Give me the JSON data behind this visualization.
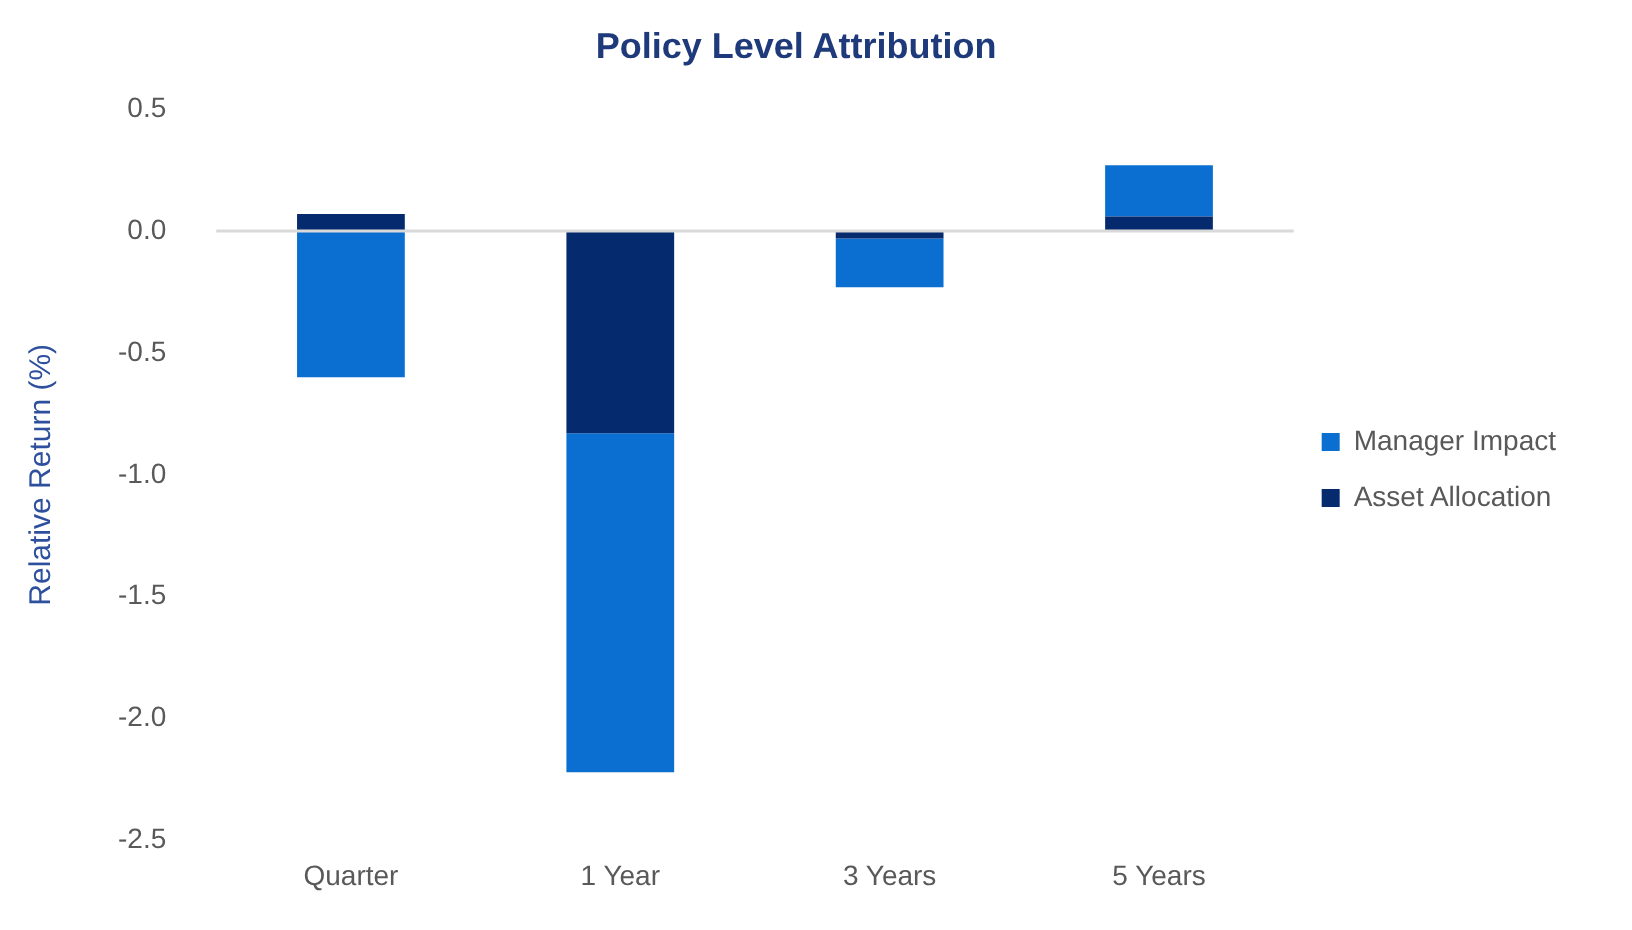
{
  "chart_data": {
    "type": "bar",
    "title": "Policy Level Attribution",
    "ylabel": "Relative Return (%)",
    "categories": [
      "Quarter",
      "1 Year",
      "3 Years",
      "5 Years"
    ],
    "stacked": true,
    "series": [
      {
        "name": "Asset Allocation",
        "color": "#062a6e",
        "values": [
          0.07,
          -0.83,
          -0.03,
          0.06
        ]
      },
      {
        "name": "Manager Impact",
        "color": "#0a6fd0",
        "values": [
          -0.6,
          -1.39,
          -0.2,
          0.21
        ]
      }
    ],
    "ylim": [
      -2.5,
      0.5
    ],
    "yticks": [
      {
        "value": -2.5,
        "label": "-2.5"
      },
      {
        "value": -2,
        "label": "-2.0"
      },
      {
        "value": -1.5,
        "label": "-1.5"
      },
      {
        "value": -1,
        "label": "-1.0"
      },
      {
        "value": -0.5,
        "label": "-0.5"
      },
      {
        "value": 0,
        "label": "0.0"
      },
      {
        "value": 0.5,
        "label": "0.5"
      }
    ],
    "ref_lines": [
      {
        "axis": "y",
        "value": 0,
        "color": "#d9d9d9"
      }
    ],
    "grid": false,
    "legend": "right"
  }
}
